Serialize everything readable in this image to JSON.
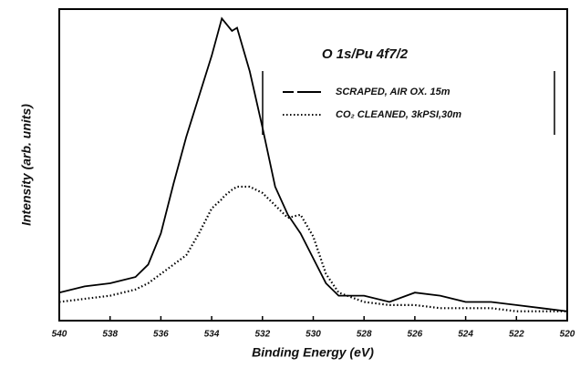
{
  "chart_data": {
    "type": "line",
    "title": "O 1s/Pu 4f7/2",
    "x_label": "Binding Energy (eV)",
    "y_label": "Intensity (arb. units)",
    "x": [
      540,
      539,
      538,
      537,
      536.5,
      536,
      535.5,
      535,
      534.5,
      534,
      533.6,
      533.5,
      533.2,
      533,
      532.5,
      532,
      531.5,
      531,
      530.5,
      530,
      529.5,
      529,
      528,
      527,
      526,
      525,
      524,
      523,
      522,
      521,
      520
    ],
    "series": [
      {
        "name": "SCRAPED, AIR OX. 15m",
        "color": "#000000",
        "dash": "solid",
        "values": [
          9,
          11,
          12,
          14,
          18,
          28,
          44,
          59,
          72,
          85,
          97,
          96,
          93,
          94,
          80,
          62,
          43,
          34,
          28,
          20,
          12,
          8,
          8,
          6,
          9,
          8,
          6,
          6,
          5,
          4,
          3
        ]
      },
      {
        "name": "CO₂ CLEANED, 3kPSI,30m",
        "color": "#000000",
        "dash": "dotted",
        "values": [
          6,
          7,
          8,
          10,
          12,
          15,
          18,
          21,
          28,
          36,
          39,
          40,
          42,
          43,
          43,
          41,
          37,
          33,
          34,
          27,
          15,
          9,
          6,
          5,
          5,
          4,
          4,
          4,
          3,
          3,
          3
        ]
      }
    ],
    "xlim": [
      540,
      520
    ],
    "xticks": [
      540,
      538,
      536,
      534,
      532,
      530,
      528,
      526,
      524,
      522,
      520
    ],
    "ylim": [
      0,
      100
    ],
    "grid": false
  }
}
